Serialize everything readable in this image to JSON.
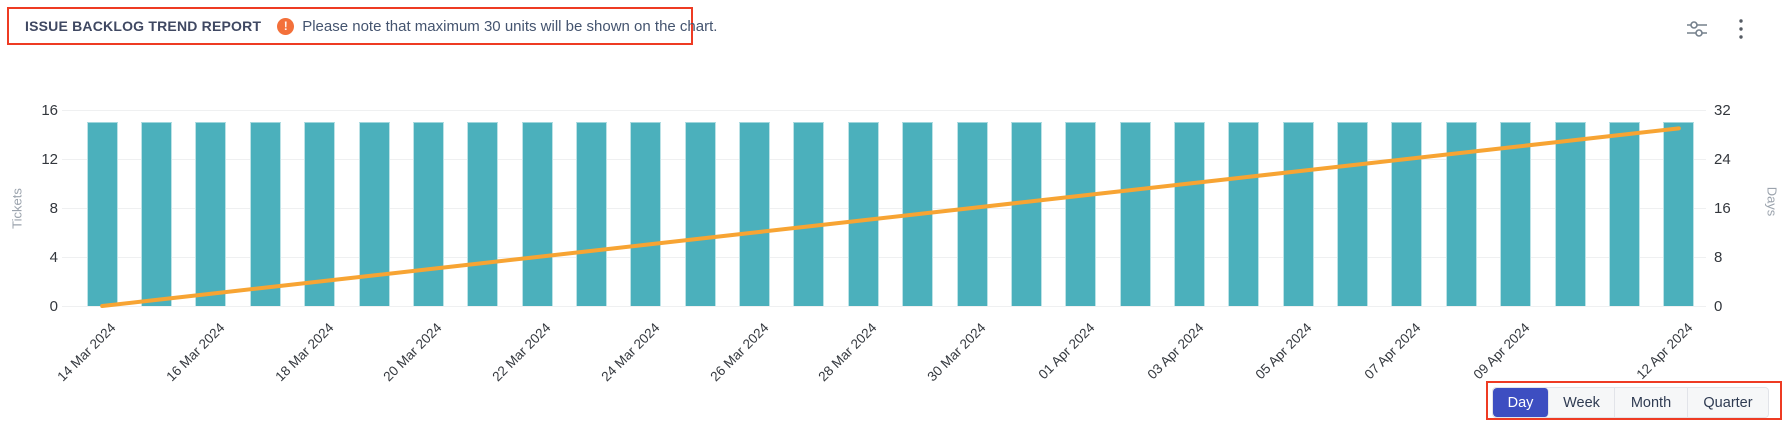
{
  "header": {
    "title": "ISSUE BACKLOG TREND REPORT",
    "warning_icon": "exclamation-circle-icon",
    "warning_glyph": "!",
    "note": "Please note that maximum 30 units will be shown on the chart."
  },
  "toolbar": {
    "filter_icon": "sliders-icon",
    "menu_icon": "kebab-menu-icon"
  },
  "chart_data": {
    "type": "bar",
    "subtype": "bar-with-line-overlay",
    "categories": [
      "14 Mar 2024",
      "15 Mar 2024",
      "16 Mar 2024",
      "17 Mar 2024",
      "18 Mar 2024",
      "19 Mar 2024",
      "20 Mar 2024",
      "21 Mar 2024",
      "22 Mar 2024",
      "23 Mar 2024",
      "24 Mar 2024",
      "25 Mar 2024",
      "26 Mar 2024",
      "27 Mar 2024",
      "28 Mar 2024",
      "29 Mar 2024",
      "30 Mar 2024",
      "31 Mar 2024",
      "01 Apr 2024",
      "02 Apr 2024",
      "03 Apr 2024",
      "04 Apr 2024",
      "05 Apr 2024",
      "06 Apr 2024",
      "07 Apr 2024",
      "08 Apr 2024",
      "09 Apr 2024",
      "10 Apr 2024",
      "11 Apr 2024",
      "12 Apr 2024"
    ],
    "x_label_indices": [
      0,
      2,
      4,
      6,
      8,
      10,
      12,
      14,
      16,
      18,
      20,
      22,
      24,
      26,
      29
    ],
    "series": [
      {
        "name": "Tickets",
        "type": "bar",
        "axis": "left",
        "color": "#4BB0BC",
        "values": [
          15,
          15,
          15,
          15,
          15,
          15,
          15,
          15,
          15,
          15,
          15,
          15,
          15,
          15,
          15,
          15,
          15,
          15,
          15,
          15,
          15,
          15,
          15,
          15,
          15,
          15,
          15,
          15,
          15,
          15
        ]
      },
      {
        "name": "Days",
        "type": "line",
        "axis": "right",
        "color": "#F7A433",
        "values": [
          0,
          1,
          2,
          3,
          4,
          5,
          6,
          7,
          8,
          9,
          10,
          11,
          12,
          13,
          14,
          15,
          16,
          17,
          18,
          19,
          20,
          21,
          22,
          23,
          24,
          25,
          26,
          27,
          28,
          29
        ]
      }
    ],
    "left_axis": {
      "label": "Tickets",
      "ticks": [
        0,
        4,
        8,
        12,
        16
      ],
      "min": 0,
      "max": 16
    },
    "right_axis": {
      "label": "Days",
      "ticks": [
        0,
        8,
        16,
        24,
        32
      ],
      "min": 0,
      "max": 32
    },
    "grid": true,
    "legend": "none",
    "title": "ISSUE BACKLOG TREND REPORT"
  },
  "period_toggle": {
    "options": [
      {
        "label": "Day",
        "selected": true
      },
      {
        "label": "Week",
        "selected": false
      },
      {
        "label": "Month",
        "selected": false
      },
      {
        "label": "Quarter",
        "selected": false
      }
    ]
  },
  "colors": {
    "bar": "#4BB0BC",
    "line": "#F7A433",
    "annotation_box": "#EE3B23",
    "selected_button": "#3D4EC1",
    "warning_dot": "#F3703A",
    "gridline": "#EFF0F1"
  }
}
